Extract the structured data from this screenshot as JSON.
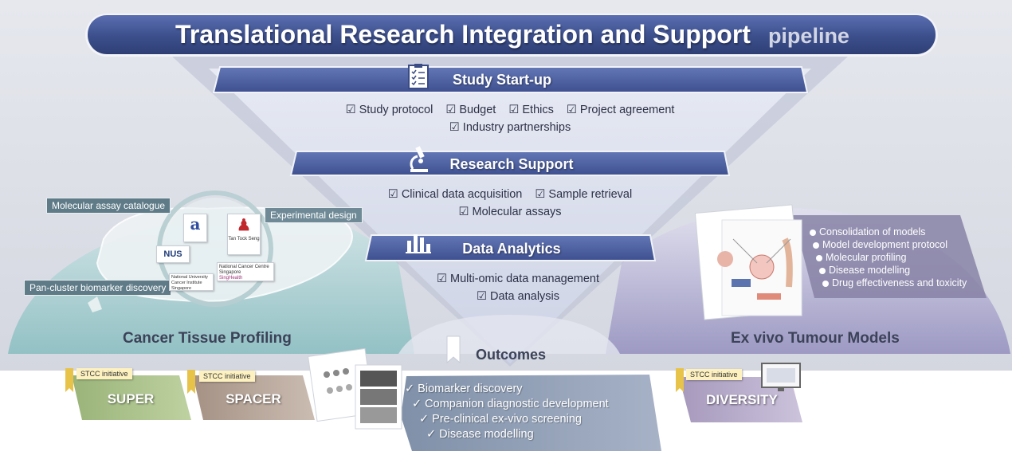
{
  "title": {
    "main": "Translational Research Integration and Support",
    "suffix": "pipeline"
  },
  "stages": [
    {
      "label": "Study Start-up",
      "icon": "checklist-icon",
      "items": [
        "☑ Study protocol",
        "☑ Budget",
        "☑ Ethics",
        "☑ Project agreement",
        "☑ Industry partnerships"
      ]
    },
    {
      "label": "Research Support",
      "icon": "microscope-icon",
      "items": [
        "☑ Clinical data acquisition",
        "☑ Sample retrieval",
        "☑ Molecular assays"
      ]
    },
    {
      "label": "Data Analytics",
      "icon": "bar-chart-icon",
      "items": [
        "☑ Multi-omic data management",
        "☑ Data analysis"
      ]
    }
  ],
  "left": {
    "title": "Cancer Tissue Profiling",
    "tags": [
      "Molecular assay catalogue",
      "Experimental design",
      "Pan-cluster biomarker discovery"
    ],
    "logos": [
      "NUS",
      "National University Cancer Institute Singapore",
      "National Cancer Centre Singapore",
      "SingHealth",
      "Tan Tock Seng"
    ]
  },
  "right": {
    "title": "Ex vivo Tumour Models",
    "bullets": [
      "Consolidation of models",
      "Model development protocol",
      "Molecular profiling",
      "Disease modelling",
      "Drug effectiveness and toxicity"
    ]
  },
  "outcomes": {
    "label": "Outcomes",
    "items": [
      "✓ Biomarker discovery",
      "✓ Companion diagnostic development",
      "✓ Pre-clinical ex-vivo screening",
      "✓ Disease modelling"
    ]
  },
  "initiatives": [
    {
      "tag": "STCC initiative",
      "label": "SUPER"
    },
    {
      "tag": "STCC initiative",
      "label": "SPACER"
    },
    {
      "tag": "STCC initiative",
      "label": "DIVERSITY"
    }
  ],
  "colors": {
    "banner": "#3f5390",
    "stage": "#4f62a0",
    "teal": "#8fc1c4",
    "purple": "#9f9ac2",
    "funnel": "#dfe3ef"
  }
}
